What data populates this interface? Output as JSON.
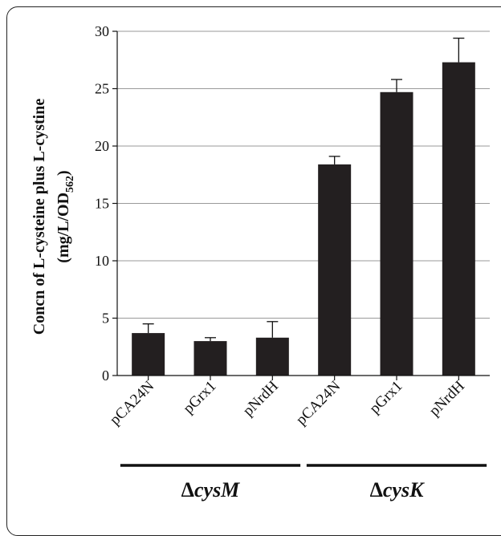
{
  "chart_data": {
    "type": "bar",
    "categories": [
      "pCA24N",
      "pGrx1",
      "pNrdH",
      "pCA24N",
      "pGrx1",
      "pNrdH"
    ],
    "values": [
      3.7,
      3.0,
      3.3,
      18.4,
      24.7,
      27.3
    ],
    "errors": [
      0.8,
      0.3,
      1.4,
      0.7,
      1.1,
      2.1
    ],
    "groups": [
      {
        "prefix": "Δ",
        "name": "cysM",
        "members": [
          0,
          1,
          2
        ]
      },
      {
        "prefix": "Δ",
        "name": "cysK",
        "members": [
          3,
          4,
          5
        ]
      }
    ],
    "ylabel_line1": "Concn of L-cysteine plus L-cystine",
    "ylabel_line2_pre": "(mg/L/OD",
    "ylabel_line2_sub": "562",
    "ylabel_line2_post": ")",
    "ylim": [
      0,
      30
    ],
    "yticks": [
      0,
      5,
      10,
      15,
      20,
      25,
      30
    ],
    "grid": true,
    "bar_color": "#231f20"
  }
}
